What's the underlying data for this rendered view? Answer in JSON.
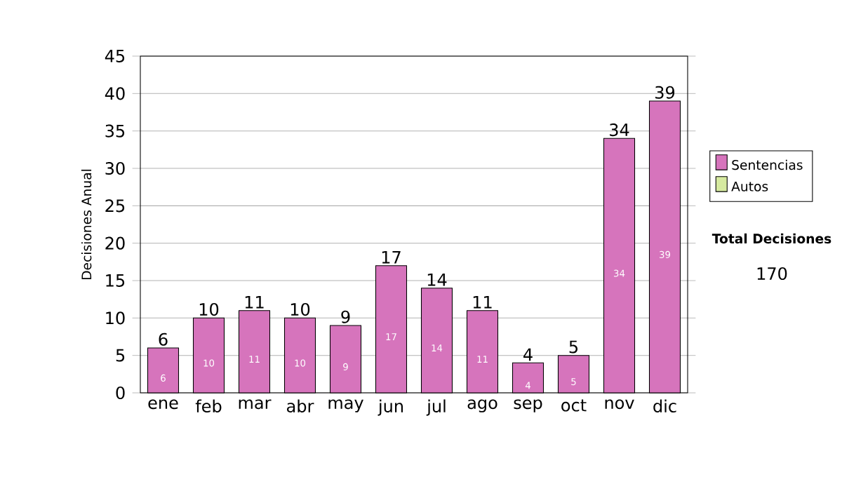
{
  "chart_data": {
    "type": "bar",
    "stacked": true,
    "ylabel": "Decisiones Anual",
    "categories": [
      "ene",
      "feb",
      "mar",
      "abr",
      "may",
      "jun",
      "jul",
      "ago",
      "sep",
      "oct",
      "nov",
      "dic"
    ],
    "series": [
      {
        "name": "Sentencias",
        "color": "#d674bc",
        "values": [
          6,
          10,
          11,
          10,
          9,
          17,
          14,
          11,
          4,
          5,
          34,
          39
        ],
        "value_labels": [
          "6",
          "10",
          "11",
          "10",
          "9",
          "17",
          "14",
          "11",
          "4",
          "5",
          "34",
          "39"
        ]
      },
      {
        "name": "Autos",
        "color": "#d6eaa0",
        "values": [
          0,
          0,
          0,
          0,
          0,
          0,
          0,
          0,
          0,
          0,
          0,
          0
        ]
      }
    ],
    "totals": [
      "6",
      "10",
      "11",
      "10",
      "9",
      "17",
      "14",
      "11",
      "4",
      "5",
      "34",
      "39"
    ],
    "ylim": [
      0,
      45
    ],
    "yticks": [
      0,
      5,
      10,
      15,
      20,
      25,
      30,
      35,
      40,
      45
    ],
    "grid": "y",
    "legend": "right",
    "annotations": [
      "Total Decisiones",
      "170"
    ]
  }
}
